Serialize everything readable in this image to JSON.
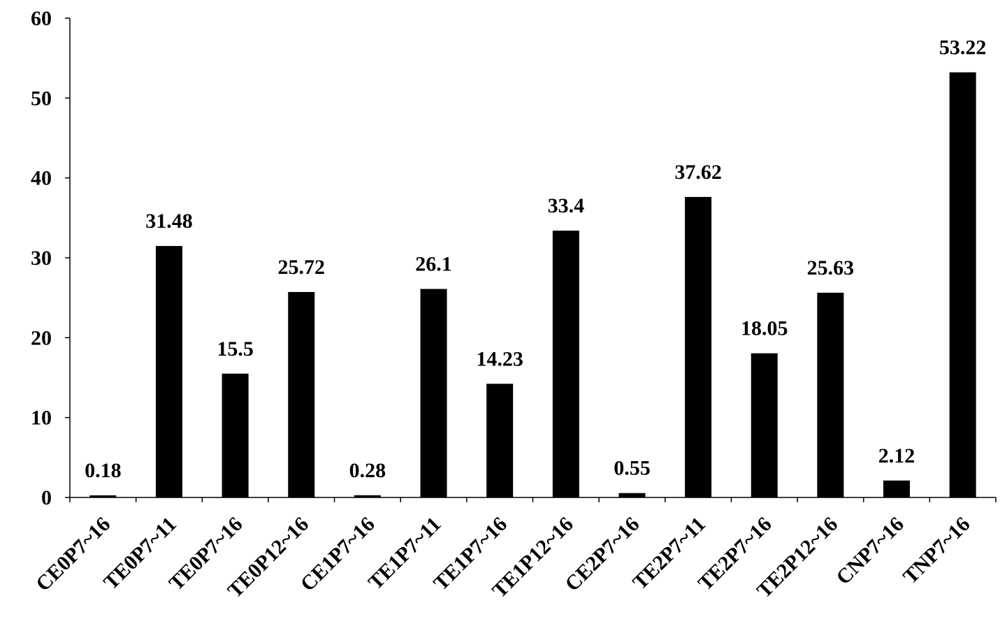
{
  "chart_data": {
    "type": "bar",
    "categories": [
      "CE0P7~16",
      "TE0P7~11",
      "TE0P7~16",
      "TE0P12~16",
      "CE1P7~16",
      "TE1P7~11",
      "TE1P7~16",
      "TE1P12~16",
      "CE2P7~16",
      "TE2P7~11",
      "TE2P7~16",
      "TE2P12~16",
      "CNP7~16",
      "TNP7~16"
    ],
    "values": [
      0.18,
      31.48,
      15.5,
      25.72,
      0.28,
      26.1,
      14.23,
      33.4,
      0.55,
      37.62,
      18.05,
      25.63,
      2.12,
      53.22
    ],
    "data_labels": [
      "0.18",
      "31.48",
      "15.5",
      "25.72",
      "0.28",
      "26.1",
      "14.23",
      "33.4",
      "0.55",
      "37.62",
      "18.05",
      "25.63",
      "2.12",
      "53.22"
    ],
    "yticks": [
      0,
      10,
      20,
      30,
      40,
      50,
      60
    ],
    "ylim": [
      0,
      60
    ],
    "title": "",
    "xlabel": "",
    "ylabel": "",
    "grid": false,
    "bar_color": "#000000",
    "x_label_rotation_deg": -45
  }
}
